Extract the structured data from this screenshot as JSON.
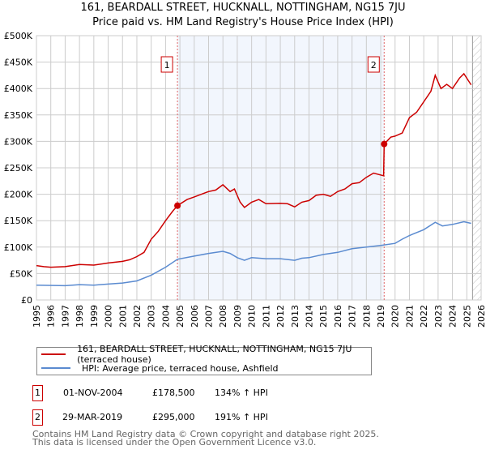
{
  "title": "161, BEARDALL STREET, HUCKNALL, NOTTINGHAM, NG15 7JU",
  "subtitle": "Price paid vs. HM Land Registry's House Price Index (HPI)",
  "chart_data": {
    "type": "line",
    "xlim": [
      1995,
      2026
    ],
    "ylim": [
      0,
      500000
    ],
    "y_ticks": [
      0,
      50000,
      100000,
      150000,
      200000,
      250000,
      300000,
      350000,
      400000,
      450000,
      500000
    ],
    "y_tick_labels": [
      "£0",
      "£50K",
      "£100K",
      "£150K",
      "£200K",
      "£250K",
      "£300K",
      "£350K",
      "£400K",
      "£450K",
      "£500K"
    ],
    "x_ticks": [
      1995,
      1996,
      1997,
      1998,
      1999,
      2000,
      2001,
      2002,
      2003,
      2004,
      2005,
      2006,
      2007,
      2008,
      2009,
      2010,
      2011,
      2012,
      2013,
      2014,
      2015,
      2016,
      2017,
      2018,
      2019,
      2020,
      2021,
      2022,
      2023,
      2024,
      2025,
      2026
    ],
    "grid": true,
    "shaded_region": [
      2004.83,
      2019.24
    ],
    "forecast_hatch_from": 2025.4,
    "series": [
      {
        "name": "161, BEARDALL STREET, HUCKNALL, NOTTINGHAM, NG15 7JU (terraced house)",
        "color": "#cc0000",
        "x": [
          1995,
          1995.5,
          1996,
          1997,
          1998,
          1999,
          2000,
          2001,
          2001.5,
          2002,
          2002.5,
          2003,
          2003.5,
          2004,
          2004.5,
          2004.83,
          2005.5,
          2006,
          2006.5,
          2007,
          2007.5,
          2008,
          2008.5,
          2008.8,
          2009.2,
          2009.5,
          2010,
          2010.5,
          2011,
          2012,
          2012.5,
          2013,
          2013.5,
          2014,
          2014.5,
          2015,
          2015.5,
          2016,
          2016.5,
          2017,
          2017.5,
          2018,
          2018.5,
          2019.2,
          2019.24,
          2019.7,
          2020,
          2020.5,
          2021,
          2021.5,
          2022,
          2022.5,
          2022.8,
          2023.2,
          2023.6,
          2024,
          2024.5,
          2024.8,
          2025.3
        ],
        "y": [
          65000,
          63000,
          62000,
          63000,
          67000,
          66000,
          70000,
          73000,
          76000,
          82000,
          90000,
          115000,
          130000,
          150000,
          168000,
          178500,
          190000,
          195000,
          200000,
          205000,
          208000,
          218000,
          205000,
          210000,
          185000,
          175000,
          185000,
          190000,
          182000,
          183000,
          182000,
          176000,
          185000,
          188000,
          198000,
          200000,
          196000,
          205000,
          210000,
          220000,
          222000,
          232000,
          240000,
          235000,
          295000,
          308000,
          310000,
          316000,
          345000,
          355000,
          375000,
          395000,
          425000,
          400000,
          408000,
          400000,
          420000,
          428000,
          407000
        ]
      },
      {
        "name": "HPI: Average price, terraced house, Ashfield",
        "color": "#5b8bd0",
        "x": [
          1995,
          1997,
          1998,
          1999,
          2000,
          2001,
          2002,
          2003,
          2004,
          2004.83,
          2006,
          2007,
          2008,
          2008.5,
          2009,
          2009.5,
          2010,
          2011,
          2012,
          2013,
          2013.5,
          2014,
          2015,
          2016,
          2017,
          2018,
          2019,
          2020,
          2020.5,
          2021,
          2022,
          2022.8,
          2023.3,
          2024,
          2024.8,
          2025.3
        ],
        "y": [
          28000,
          27000,
          29000,
          28000,
          30000,
          32000,
          36000,
          47000,
          62000,
          77000,
          83000,
          88000,
          92000,
          88000,
          80000,
          75000,
          80000,
          78000,
          78000,
          75000,
          79000,
          80000,
          86000,
          90000,
          97000,
          100000,
          103000,
          107000,
          115000,
          122000,
          133000,
          147000,
          140000,
          143000,
          148000,
          145000
        ]
      }
    ],
    "annotations": [
      {
        "label": "1",
        "x": 2004.83,
        "y": 178500
      },
      {
        "label": "2",
        "x": 2019.24,
        "y": 295000
      }
    ]
  },
  "legend": {
    "items": [
      {
        "label": "161, BEARDALL STREET, HUCKNALL, NOTTINGHAM, NG15 7JU (terraced house)",
        "color": "#cc0000"
      },
      {
        "label": "HPI: Average price, terraced house, Ashfield",
        "color": "#5b8bd0"
      }
    ]
  },
  "sales": [
    {
      "num": "1",
      "date": "01-NOV-2004",
      "price": "£178,500",
      "hpi": "134% ↑ HPI"
    },
    {
      "num": "2",
      "date": "29-MAR-2019",
      "price": "£295,000",
      "hpi": "191% ↑ HPI"
    }
  ],
  "footer": {
    "line1": "Contains HM Land Registry data © Crown copyright and database right 2025.",
    "line2": "This data is licensed under the Open Government Licence v3.0."
  }
}
